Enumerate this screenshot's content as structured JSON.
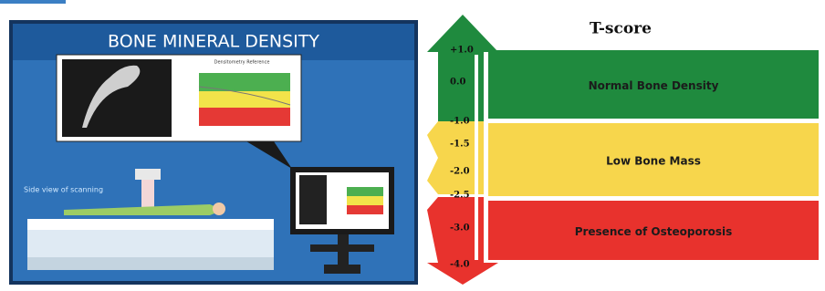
{
  "illustration": {
    "title": "BONE MINERAL DENSITY",
    "chart_title": "Densitometry Reference",
    "caption": "Side view of scanning"
  },
  "tscore": {
    "title": "T-score",
    "scale": [
      "+1.0",
      "0.0",
      "-1.0",
      "-1.5",
      "-2.0",
      "-2.5",
      "-3.0",
      "-4.0"
    ],
    "zones": [
      {
        "label": "Normal  Bone Density",
        "color": "#1f8a3e"
      },
      {
        "label": "Low  Bone Mass",
        "color": "#f7d64c"
      },
      {
        "label": "Presence of Osteoporosis",
        "color": "#e8322d"
      }
    ]
  }
}
